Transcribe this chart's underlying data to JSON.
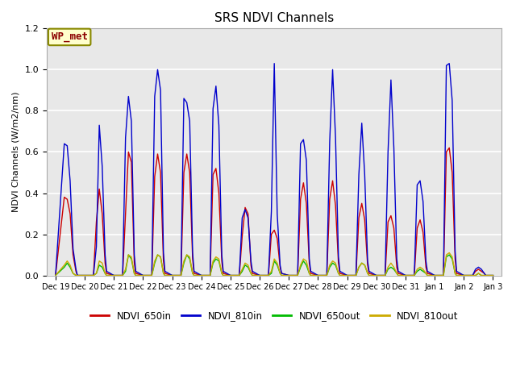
{
  "title": "SRS NDVI Channels",
  "ylabel": "NDVI Channels (W/m2/nm)",
  "xlabel": "",
  "annotation": "WP_met",
  "legend": [
    "NDVI_650in",
    "NDVI_810in",
    "NDVI_650out",
    "NDVI_810out"
  ],
  "legend_colors": [
    "#cc0000",
    "#0000cc",
    "#00bb00",
    "#ccaa00"
  ],
  "ylim": [
    0,
    1.2
  ],
  "figure_facecolor": "#ffffff",
  "plot_facecolor": "#e8e8e8",
  "x_tick_labels": [
    "Dec 19",
    "Dec 20",
    "Dec 21",
    "Dec 22",
    "Dec 23",
    "Dec 24",
    "Dec 25",
    "Dec 26",
    "Dec 27",
    "Dec 28",
    "Dec 29",
    "Dec 30",
    "Dec 31",
    "Jan 1",
    "Jan 2",
    "Jan 3"
  ],
  "x_tick_positions": [
    0,
    1,
    2,
    3,
    4,
    5,
    6,
    7,
    8,
    9,
    10,
    11,
    12,
    13,
    14,
    15
  ],
  "series": {
    "NDVI_650in": {
      "color": "#cc0000",
      "data_x": [
        0.0,
        0.3,
        0.4,
        0.5,
        0.6,
        0.7,
        0.75,
        1.0,
        1.3,
        1.4,
        1.5,
        1.6,
        1.7,
        1.75,
        2.0,
        2.3,
        2.4,
        2.5,
        2.6,
        2.7,
        2.75,
        3.0,
        3.3,
        3.4,
        3.5,
        3.6,
        3.7,
        3.75,
        4.0,
        4.3,
        4.4,
        4.5,
        4.6,
        4.7,
        4.75,
        5.0,
        5.3,
        5.4,
        5.5,
        5.6,
        5.7,
        5.75,
        6.0,
        6.3,
        6.4,
        6.5,
        6.6,
        6.7,
        6.75,
        7.0,
        7.3,
        7.4,
        7.5,
        7.6,
        7.7,
        7.75,
        8.0,
        8.3,
        8.4,
        8.5,
        8.6,
        8.7,
        8.75,
        9.0,
        9.3,
        9.4,
        9.5,
        9.6,
        9.7,
        9.75,
        10.0,
        10.3,
        10.4,
        10.5,
        10.6,
        10.7,
        10.75,
        11.0,
        11.3,
        11.4,
        11.5,
        11.6,
        11.7,
        11.75,
        12.0,
        12.3,
        12.4,
        12.5,
        12.6,
        12.7,
        12.75,
        13.0,
        13.3,
        13.4,
        13.5,
        13.6,
        13.7,
        13.75,
        14.0,
        14.3,
        14.4,
        14.5,
        14.6,
        14.7,
        14.75,
        15.0
      ],
      "data_y": [
        0.0,
        0.38,
        0.37,
        0.3,
        0.1,
        0.02,
        0.0,
        0.0,
        0.0,
        0.26,
        0.42,
        0.3,
        0.06,
        0.01,
        0.0,
        0.0,
        0.3,
        0.6,
        0.55,
        0.06,
        0.01,
        0.0,
        0.0,
        0.48,
        0.59,
        0.5,
        0.07,
        0.01,
        0.0,
        0.0,
        0.5,
        0.59,
        0.5,
        0.08,
        0.01,
        0.0,
        0.0,
        0.49,
        0.52,
        0.4,
        0.07,
        0.01,
        0.0,
        0.0,
        0.19,
        0.33,
        0.3,
        0.05,
        0.01,
        0.0,
        0.0,
        0.2,
        0.22,
        0.18,
        0.04,
        0.01,
        0.0,
        0.0,
        0.37,
        0.45,
        0.35,
        0.06,
        0.01,
        0.0,
        0.0,
        0.37,
        0.46,
        0.34,
        0.06,
        0.01,
        0.0,
        0.0,
        0.28,
        0.35,
        0.27,
        0.05,
        0.01,
        0.0,
        0.0,
        0.26,
        0.29,
        0.23,
        0.04,
        0.01,
        0.0,
        0.0,
        0.23,
        0.27,
        0.21,
        0.04,
        0.01,
        0.0,
        0.0,
        0.6,
        0.62,
        0.5,
        0.08,
        0.01,
        0.0,
        0.0,
        0.02,
        0.03,
        0.02,
        0.01,
        0.0,
        0.0
      ]
    },
    "NDVI_810in": {
      "color": "#0000cc",
      "data_x": [
        0.0,
        0.3,
        0.4,
        0.5,
        0.6,
        0.7,
        0.75,
        1.0,
        1.3,
        1.4,
        1.5,
        1.6,
        1.7,
        1.75,
        2.0,
        2.3,
        2.4,
        2.5,
        2.6,
        2.7,
        2.75,
        3.0,
        3.3,
        3.4,
        3.5,
        3.6,
        3.7,
        3.75,
        4.0,
        4.3,
        4.4,
        4.5,
        4.6,
        4.7,
        4.75,
        5.0,
        5.3,
        5.4,
        5.5,
        5.6,
        5.7,
        5.75,
        6.0,
        6.3,
        6.4,
        6.5,
        6.6,
        6.7,
        6.75,
        7.0,
        7.3,
        7.4,
        7.5,
        7.6,
        7.7,
        7.75,
        8.0,
        8.3,
        8.4,
        8.5,
        8.6,
        8.7,
        8.75,
        9.0,
        9.3,
        9.4,
        9.5,
        9.6,
        9.7,
        9.75,
        10.0,
        10.3,
        10.4,
        10.5,
        10.6,
        10.7,
        10.75,
        11.0,
        11.3,
        11.4,
        11.5,
        11.6,
        11.7,
        11.75,
        12.0,
        12.3,
        12.4,
        12.5,
        12.6,
        12.7,
        12.75,
        13.0,
        13.3,
        13.4,
        13.5,
        13.6,
        13.7,
        13.75,
        14.0,
        14.3,
        14.4,
        14.5,
        14.6,
        14.7,
        14.75,
        15.0
      ],
      "data_y": [
        0.0,
        0.64,
        0.63,
        0.46,
        0.13,
        0.03,
        0.0,
        0.0,
        0.0,
        0.14,
        0.73,
        0.53,
        0.1,
        0.02,
        0.0,
        0.0,
        0.67,
        0.87,
        0.75,
        0.1,
        0.02,
        0.0,
        0.0,
        0.87,
        1.0,
        0.9,
        0.11,
        0.02,
        0.0,
        0.0,
        0.86,
        0.84,
        0.75,
        0.11,
        0.02,
        0.0,
        0.0,
        0.81,
        0.92,
        0.73,
        0.1,
        0.02,
        0.0,
        0.0,
        0.28,
        0.32,
        0.28,
        0.07,
        0.02,
        0.0,
        0.0,
        0.31,
        1.03,
        0.3,
        0.05,
        0.01,
        0.0,
        0.0,
        0.64,
        0.66,
        0.56,
        0.08,
        0.02,
        0.0,
        0.0,
        0.65,
        1.0,
        0.67,
        0.09,
        0.02,
        0.0,
        0.0,
        0.49,
        0.74,
        0.49,
        0.07,
        0.02,
        0.0,
        0.0,
        0.6,
        0.95,
        0.62,
        0.08,
        0.02,
        0.0,
        0.0,
        0.44,
        0.46,
        0.36,
        0.07,
        0.02,
        0.0,
        0.0,
        1.02,
        1.03,
        0.85,
        0.12,
        0.02,
        0.0,
        0.0,
        0.03,
        0.04,
        0.03,
        0.01,
        0.0,
        0.0
      ]
    },
    "NDVI_650out": {
      "color": "#00bb00",
      "data_x": [
        0.0,
        0.3,
        0.4,
        0.5,
        0.6,
        0.7,
        0.75,
        1.0,
        1.3,
        1.4,
        1.5,
        1.6,
        1.7,
        1.75,
        2.0,
        2.3,
        2.4,
        2.5,
        2.6,
        2.7,
        2.75,
        3.0,
        3.3,
        3.4,
        3.5,
        3.6,
        3.7,
        3.75,
        4.0,
        4.3,
        4.4,
        4.5,
        4.6,
        4.7,
        4.75,
        5.0,
        5.3,
        5.4,
        5.5,
        5.6,
        5.7,
        5.75,
        6.0,
        6.3,
        6.4,
        6.5,
        6.6,
        6.7,
        6.75,
        7.0,
        7.3,
        7.4,
        7.5,
        7.6,
        7.7,
        7.75,
        8.0,
        8.3,
        8.4,
        8.5,
        8.6,
        8.7,
        8.75,
        9.0,
        9.3,
        9.4,
        9.5,
        9.6,
        9.7,
        9.75,
        10.0,
        10.3,
        10.4,
        10.5,
        10.6,
        10.7,
        10.75,
        11.0,
        11.3,
        11.4,
        11.5,
        11.6,
        11.7,
        11.75,
        12.0,
        12.3,
        12.4,
        12.5,
        12.6,
        12.7,
        12.75,
        13.0,
        13.3,
        13.4,
        13.5,
        13.6,
        13.7,
        13.75,
        14.0,
        14.3,
        14.4,
        14.5,
        14.6,
        14.7,
        14.75,
        15.0
      ],
      "data_y": [
        0.0,
        0.04,
        0.06,
        0.04,
        0.01,
        0.0,
        0.0,
        0.0,
        0.0,
        0.01,
        0.05,
        0.04,
        0.01,
        0.0,
        0.0,
        0.0,
        0.02,
        0.1,
        0.08,
        0.01,
        0.0,
        0.0,
        0.0,
        0.06,
        0.1,
        0.09,
        0.01,
        0.0,
        0.0,
        0.0,
        0.06,
        0.1,
        0.08,
        0.01,
        0.0,
        0.0,
        0.0,
        0.06,
        0.08,
        0.07,
        0.01,
        0.0,
        0.0,
        0.0,
        0.02,
        0.05,
        0.04,
        0.01,
        0.0,
        0.0,
        0.0,
        0.01,
        0.07,
        0.05,
        0.01,
        0.0,
        0.0,
        0.0,
        0.04,
        0.07,
        0.05,
        0.01,
        0.0,
        0.0,
        0.0,
        0.04,
        0.06,
        0.05,
        0.01,
        0.0,
        0.0,
        0.0,
        0.04,
        0.06,
        0.05,
        0.01,
        0.0,
        0.0,
        0.0,
        0.03,
        0.04,
        0.03,
        0.01,
        0.0,
        0.0,
        0.0,
        0.02,
        0.03,
        0.02,
        0.01,
        0.0,
        0.0,
        0.0,
        0.09,
        0.1,
        0.08,
        0.01,
        0.0,
        0.0,
        0.0,
        0.0,
        0.01,
        0.0,
        0.0,
        0.0,
        0.0
      ]
    },
    "NDVI_810out": {
      "color": "#ccaa00",
      "data_x": [
        0.0,
        0.3,
        0.4,
        0.5,
        0.6,
        0.7,
        0.75,
        1.0,
        1.3,
        1.4,
        1.5,
        1.6,
        1.7,
        1.75,
        2.0,
        2.3,
        2.4,
        2.5,
        2.6,
        2.7,
        2.75,
        3.0,
        3.3,
        3.4,
        3.5,
        3.6,
        3.7,
        3.75,
        4.0,
        4.3,
        4.4,
        4.5,
        4.6,
        4.7,
        4.75,
        5.0,
        5.3,
        5.4,
        5.5,
        5.6,
        5.7,
        5.75,
        6.0,
        6.3,
        6.4,
        6.5,
        6.6,
        6.7,
        6.75,
        7.0,
        7.3,
        7.4,
        7.5,
        7.6,
        7.7,
        7.75,
        8.0,
        8.3,
        8.4,
        8.5,
        8.6,
        8.7,
        8.75,
        9.0,
        9.3,
        9.4,
        9.5,
        9.6,
        9.7,
        9.75,
        10.0,
        10.3,
        10.4,
        10.5,
        10.6,
        10.7,
        10.75,
        11.0,
        11.3,
        11.4,
        11.5,
        11.6,
        11.7,
        11.75,
        12.0,
        12.3,
        12.4,
        12.5,
        12.6,
        12.7,
        12.75,
        13.0,
        13.3,
        13.4,
        13.5,
        13.6,
        13.7,
        13.75,
        14.0,
        14.3,
        14.4,
        14.5,
        14.6,
        14.7,
        14.75,
        15.0
      ],
      "data_y": [
        0.0,
        0.05,
        0.07,
        0.05,
        0.01,
        0.0,
        0.0,
        0.0,
        0.0,
        0.01,
        0.07,
        0.06,
        0.01,
        0.0,
        0.0,
        0.0,
        0.03,
        0.1,
        0.09,
        0.01,
        0.0,
        0.0,
        0.0,
        0.07,
        0.1,
        0.09,
        0.01,
        0.0,
        0.0,
        0.0,
        0.07,
        0.1,
        0.09,
        0.01,
        0.0,
        0.0,
        0.0,
        0.07,
        0.09,
        0.08,
        0.01,
        0.0,
        0.0,
        0.0,
        0.03,
        0.06,
        0.05,
        0.01,
        0.0,
        0.0,
        0.0,
        0.02,
        0.08,
        0.06,
        0.01,
        0.0,
        0.0,
        0.0,
        0.05,
        0.08,
        0.07,
        0.01,
        0.0,
        0.0,
        0.0,
        0.05,
        0.07,
        0.06,
        0.01,
        0.0,
        0.0,
        0.0,
        0.04,
        0.06,
        0.05,
        0.01,
        0.0,
        0.0,
        0.0,
        0.04,
        0.06,
        0.04,
        0.01,
        0.0,
        0.0,
        0.0,
        0.03,
        0.04,
        0.03,
        0.01,
        0.0,
        0.0,
        0.0,
        0.1,
        0.11,
        0.09,
        0.01,
        0.0,
        0.0,
        0.0,
        0.0,
        0.01,
        0.0,
        0.0,
        0.0,
        0.0
      ]
    }
  }
}
